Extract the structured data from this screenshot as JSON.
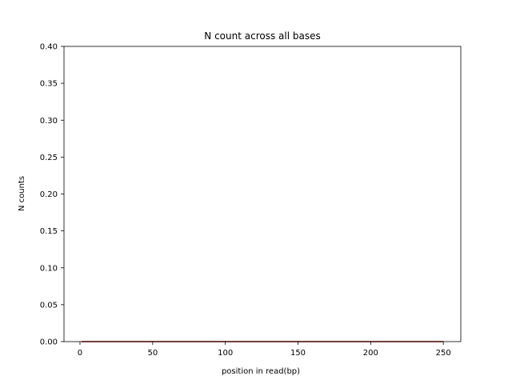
{
  "chart_data": {
    "type": "line",
    "title": "N count across all bases",
    "xlabel": "position in read(bp)",
    "ylabel": "N counts",
    "xlim": [
      -11,
      262
    ],
    "ylim": [
      0.0,
      0.4
    ],
    "xticks": [
      0,
      50,
      100,
      150,
      200,
      250
    ],
    "xtick_labels": [
      "0",
      "50",
      "100",
      "150",
      "200",
      "250"
    ],
    "yticks": [
      0.0,
      0.05,
      0.1,
      0.15,
      0.2,
      0.25,
      0.3,
      0.35,
      0.4
    ],
    "ytick_labels": [
      "0.00",
      "0.05",
      "0.10",
      "0.15",
      "0.20",
      "0.25",
      "0.30",
      "0.35",
      "0.40"
    ],
    "grid": false,
    "series": [
      {
        "color": "#8b0000",
        "x": [
          1,
          250
        ],
        "y": [
          0,
          0
        ]
      }
    ]
  }
}
